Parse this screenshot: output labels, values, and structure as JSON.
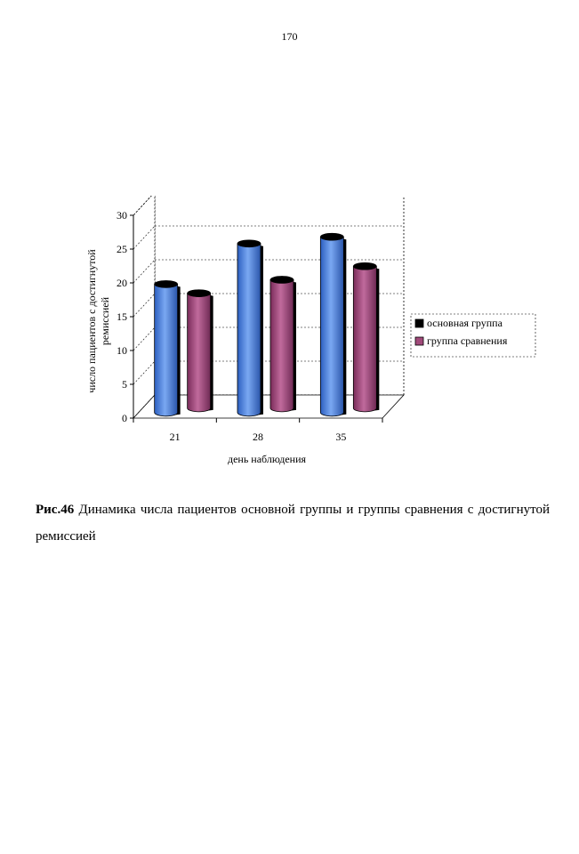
{
  "page": {
    "number": "170"
  },
  "caption": {
    "figure_label": "Рис.46",
    "text": "Динамика числа пациентов основной группы и группы сравнения с достигнутой ремиссией"
  },
  "chart_data": {
    "type": "bar",
    "style": "3d-cylinder",
    "categories": [
      "21",
      "28",
      "35"
    ],
    "series": [
      {
        "name": "основная группа",
        "values": [
          19,
          25,
          26
        ],
        "color": "#4f86e0"
      },
      {
        "name": "группа сравнения",
        "values": [
          17,
          19,
          21
        ],
        "color": "#a14a7a"
      }
    ],
    "xlabel": "день наблюдения",
    "ylabel_lines": [
      "число пациентов с достигнутой",
      "ремиссией"
    ],
    "ylim": [
      0,
      30
    ],
    "yticks": [
      0,
      5,
      10,
      15,
      20,
      25,
      30
    ],
    "grid": true,
    "legend_position": "right"
  }
}
